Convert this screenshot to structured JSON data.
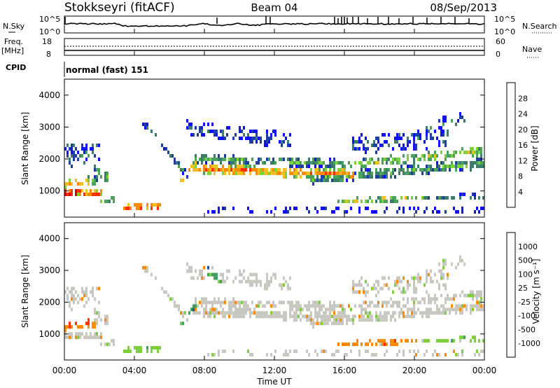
{
  "header": {
    "station": "Stokkseyri (fitACF)",
    "beam": "Beam 04",
    "date": "08/Sep/2013"
  },
  "noise_panel": {
    "left_label": "N.Sky",
    "left_ticks": [
      "10^5",
      "10^0"
    ],
    "right_ticks": [
      "10^5",
      "10^0"
    ],
    "right_label": "N.Search"
  },
  "freq_panel": {
    "label_line1": "Freq.",
    "label_line2": "[MHz]",
    "left_ticks": [
      "18",
      "8"
    ],
    "right_ticks": [
      "60",
      "0"
    ],
    "right_label": "Nave"
  },
  "cpid_panel": {
    "label": "CPID",
    "text": "normal (fast) 151"
  },
  "colors": {
    "power": [
      "#1010ff",
      "#2040a0",
      "#3a7d6a",
      "#49a35a",
      "#7cd23a",
      "#f0c020",
      "#ff8a00",
      "#ff3000",
      "#e00000"
    ],
    "velocity": [
      "#e00000",
      "#ff3000",
      "#ff8a00",
      "#c8c8c0",
      "#7ccf3a",
      "#3f9f5f",
      "#2050a0",
      "#1010ff"
    ]
  },
  "chart_data": [
    {
      "type": "heatmap",
      "name": "power",
      "ylabel": "Slant Range [km]",
      "ylim": [
        180,
        4500
      ],
      "yticks": [
        "4000",
        "3000",
        "2000",
        "1000"
      ],
      "xlim": [
        0,
        24
      ],
      "colorbar": {
        "label": "Power [dB]",
        "ticks": [
          "28",
          "24",
          "20",
          "16",
          "12",
          "8",
          "4"
        ]
      }
    },
    {
      "type": "heatmap",
      "name": "velocity",
      "ylabel": "Slant Range [km]",
      "ylim": [
        180,
        4500
      ],
      "yticks": [
        "4000",
        "3000",
        "2000",
        "1000"
      ],
      "xlim": [
        0,
        24
      ],
      "xlabel": "Time UT",
      "xticks": [
        "00:00",
        "04:00",
        "08:00",
        "12:00",
        "16:00",
        "20:00",
        "00:00"
      ],
      "colorbar": {
        "label": "Velocity [m s⁻¹]",
        "ticks": [
          "1000",
          "500",
          "100",
          "25",
          "-25",
          "-100",
          "-500",
          "-1000"
        ]
      }
    }
  ]
}
